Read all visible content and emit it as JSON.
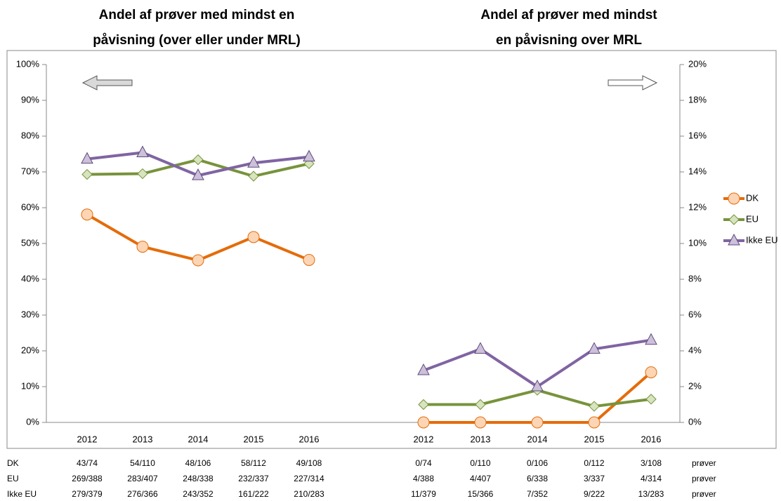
{
  "chart_data": [
    {
      "type": "line",
      "title": [
        "Andel af prøver med mindst en",
        "påvisning (over eller under MRL)"
      ],
      "categories": [
        "2012",
        "2013",
        "2014",
        "2015",
        "2016"
      ],
      "ylim": [
        0,
        100
      ],
      "yticks": [
        {
          "value": 0,
          "label": "0%"
        },
        {
          "value": 10,
          "label": "10%"
        },
        {
          "value": 20,
          "label": "20%"
        },
        {
          "value": 30,
          "label": "30%"
        },
        {
          "value": 40,
          "label": "40%"
        },
        {
          "value": 50,
          "label": "50%"
        },
        {
          "value": 60,
          "label": "60%"
        },
        {
          "value": 70,
          "label": "70%"
        },
        {
          "value": 80,
          "label": "80%"
        },
        {
          "value": 90,
          "label": "90%"
        },
        {
          "value": 100,
          "label": "100%"
        }
      ],
      "series": [
        {
          "name": "DK",
          "color": "#e46c0a",
          "marker": "circle",
          "values": [
            58.1,
            49.1,
            45.3,
            51.8,
            45.4
          ]
        },
        {
          "name": "EU",
          "color": "#77933c",
          "marker": "diamond",
          "values": [
            69.3,
            69.5,
            73.4,
            68.8,
            72.3
          ]
        },
        {
          "name": "Ikke EU",
          "color": "#8064a2",
          "marker": "triangle",
          "values": [
            73.6,
            75.4,
            69.0,
            72.5,
            74.2
          ]
        }
      ]
    },
    {
      "type": "line",
      "title": [
        "Andel af prøver med mindst",
        "en påvisning over MRL"
      ],
      "categories": [
        "2012",
        "2013",
        "2014",
        "2015",
        "2016"
      ],
      "y2lim": [
        0,
        20
      ],
      "y2ticks": [
        {
          "value": 0,
          "label": "0%"
        },
        {
          "value": 2,
          "label": "2%"
        },
        {
          "value": 4,
          "label": "4%"
        },
        {
          "value": 6,
          "label": "6%"
        },
        {
          "value": 8,
          "label": "8%"
        },
        {
          "value": 10,
          "label": "10%"
        },
        {
          "value": 12,
          "label": "12%"
        },
        {
          "value": 14,
          "label": "14%"
        },
        {
          "value": 16,
          "label": "16%"
        },
        {
          "value": 18,
          "label": "18%"
        },
        {
          "value": 20,
          "label": "20%"
        }
      ],
      "series": [
        {
          "color": "#e46c0a",
          "marker": "circle",
          "axis": "y2",
          "values": [
            0,
            0,
            0,
            0,
            2.8
          ]
        },
        {
          "color": "#77933c",
          "marker": "diamond",
          "axis": "y2",
          "values": [
            1.0,
            1.0,
            1.8,
            0.9,
            1.3
          ]
        },
        {
          "color": "#8064a2",
          "marker": "triangle",
          "axis": "y2",
          "values": [
            2.9,
            4.1,
            2.0,
            4.1,
            4.6
          ]
        }
      ]
    }
  ],
  "table": {
    "rows": [
      {
        "label": "DK",
        "cells": [
          "43/74",
          "54/110",
          "48/106",
          "58/112",
          "49/108",
          "0/74",
          "0/110",
          "0/106",
          "0/112",
          "3/108"
        ],
        "unit": "prøver"
      },
      {
        "label": "EU",
        "cells": [
          "269/388",
          "283/407",
          "248/338",
          "232/337",
          "227/314",
          "4/388",
          "4/407",
          "6/338",
          "3/337",
          "4/314"
        ],
        "unit": "prøver"
      },
      {
        "label": "Ikke EU",
        "cells": [
          "279/379",
          "276/366",
          "243/352",
          "161/222",
          "210/283",
          "11/379",
          "15/366",
          "7/352",
          "9/222",
          "13/283"
        ],
        "unit": "prøver"
      }
    ]
  }
}
